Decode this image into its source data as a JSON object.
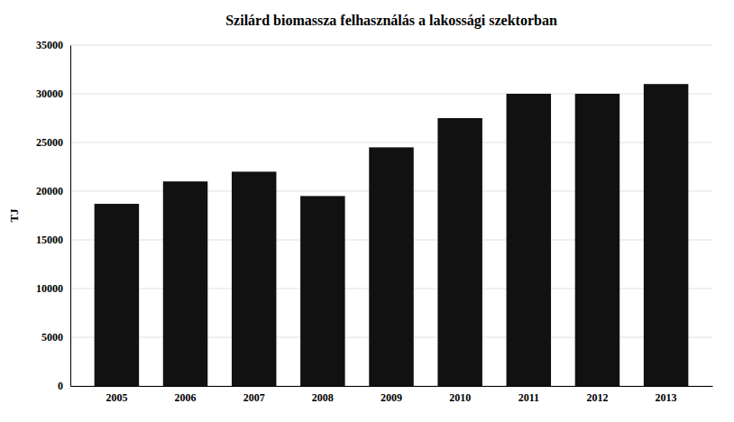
{
  "chart_data": {
    "type": "bar",
    "title": "Szilárd biomassza felhasználás a lakossági szektorban",
    "ylabel": "TJ",
    "categories": [
      "2005",
      "2006",
      "2007",
      "2008",
      "2009",
      "2010",
      "2011",
      "2012",
      "2013"
    ],
    "values": [
      18700,
      21000,
      22000,
      19500,
      24500,
      27500,
      30000,
      30000,
      31000
    ],
    "color": "#111111",
    "ylim": [
      0,
      35000
    ],
    "yticks": [
      0,
      5000,
      10000,
      15000,
      20000,
      25000,
      30000,
      35000
    ],
    "grid": true
  }
}
